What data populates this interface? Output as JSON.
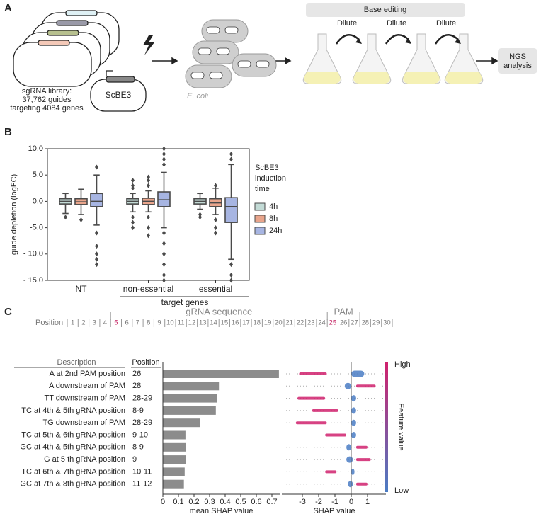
{
  "panel_a": {
    "label": "A",
    "library": [
      "sgRNA library:",
      "37,762 guides",
      "targeting 4084 genes"
    ],
    "plasmid": "ScBE3",
    "cells": "E. coli",
    "process": "Base editing",
    "steps": [
      "Dilute",
      "Dilute",
      "Dilute"
    ],
    "readout": [
      "NGS",
      "analysis"
    ]
  },
  "panel_b_label": "B",
  "panel_c_label": "C",
  "sequence": {
    "axis_label": "Position",
    "positions": [
      1,
      2,
      3,
      4,
      5,
      6,
      7,
      8,
      9,
      10,
      11,
      12,
      13,
      14,
      15,
      16,
      17,
      18,
      19,
      20,
      21,
      22,
      23,
      24,
      25,
      26,
      27,
      28,
      29,
      30
    ],
    "highlight": [
      5,
      25
    ],
    "highlight_color": "#c2185b",
    "regions": [
      "gRNA sequence",
      "PAM"
    ]
  },
  "chart_data": [
    {
      "type": "box",
      "ylabel": "guide depletion (logFC)",
      "categories": [
        "NT",
        "non-essential",
        "essential"
      ],
      "group_label": "target genes",
      "legend_title": "ScBE3 induction time",
      "ylim": [
        -15,
        10
      ],
      "yticks": [
        {
          "value": 10,
          "label": "10.0"
        },
        {
          "value": 5,
          "label": "5.0"
        },
        {
          "value": 0,
          "label": "0.0"
        },
        {
          "value": -5,
          "label": "-5.0"
        },
        {
          "value": -10,
          "label": "- 10.0"
        },
        {
          "value": -15,
          "label": "- 15.0"
        }
      ],
      "series": [
        {
          "name": "4h",
          "color": "#c3dbd6",
          "values": [
            {
              "min": -2.3,
              "q1": -0.5,
              "median": 0,
              "q3": 0.5,
              "max": 1.5,
              "outliers": [
                -3
              ]
            },
            {
              "min": -2,
              "q1": -0.5,
              "median": 0,
              "q3": 0.5,
              "max": 1.5,
              "outliers": [
                2.5,
                3,
                4,
                -3,
                -4,
                -5
              ]
            },
            {
              "min": -1.5,
              "q1": -0.5,
              "median": 0,
              "q3": 0.5,
              "max": 1.5,
              "outliers": [
                -2.5,
                -3
              ]
            }
          ]
        },
        {
          "name": "8h",
          "color": "#e9a58c",
          "values": [
            {
              "min": -2.5,
              "q1": -0.6,
              "median": -0.1,
              "q3": 0.5,
              "max": 2.3,
              "outliers": [
                -3.5
              ]
            },
            {
              "min": -2,
              "q1": -0.6,
              "median": 0,
              "q3": 0.6,
              "max": 2,
              "outliers": [
                3,
                4,
                4.6,
                -3,
                -5,
                -6.5
              ]
            },
            {
              "min": -2.5,
              "q1": -1,
              "median": -0.3,
              "q3": 0.5,
              "max": 2.5,
              "outliers": [
                3,
                -3.5,
                -5,
                -6
              ]
            }
          ]
        },
        {
          "name": "24h",
          "color": "#a7b5e2",
          "values": [
            {
              "min": -4.5,
              "q1": -1,
              "median": 0,
              "q3": 1.5,
              "max": 5,
              "outliers": [
                6.5,
                -6,
                -8.5,
                -10,
                -11,
                -12
              ]
            },
            {
              "min": -5,
              "q1": -1,
              "median": 0.3,
              "q3": 1.8,
              "max": 5.5,
              "outliers": [
                7,
                8,
                9,
                10,
                -6,
                -8,
                -10,
                -12,
                -14,
                -15
              ]
            },
            {
              "min": -11,
              "q1": -4,
              "median": -1,
              "q3": 0.7,
              "max": 7,
              "outliers": [
                8,
                9,
                -12,
                -14,
                -15
              ]
            }
          ]
        }
      ]
    },
    {
      "type": "bar",
      "orientation": "horizontal",
      "column_headers": [
        "Description",
        "Position"
      ],
      "categories": [
        "A at 2nd PAM position",
        "A downstream of PAM",
        "TT downstream of PAM",
        "TC at 4th & 5th gRNA position",
        "TG downstream of PAM",
        "TC at 5th & 6th gRNA position",
        "GC at 4th & 5th gRNA position",
        "G at 5 th gRNA position",
        "TC at 6th & 7th gRNA position",
        "GC at 7th & 8th gRNA position"
      ],
      "positions": [
        "26",
        "28",
        "28-29",
        "8-9",
        "28-29",
        "9-10",
        "8-9",
        "9",
        "10-11",
        "11-12"
      ],
      "values": [
        0.745,
        0.36,
        0.35,
        0.34,
        0.24,
        0.145,
        0.15,
        0.15,
        0.14,
        0.135
      ],
      "color": "#8c8c8c",
      "xlabel": "mean SHAP value",
      "xlim": [
        0,
        0.75
      ],
      "xticks": [
        0,
        0.1,
        0.2,
        0.3,
        0.4,
        0.5,
        0.6,
        0.7
      ]
    },
    {
      "type": "shap",
      "xlabel": "SHAP value",
      "xlim": [
        -4,
        2
      ],
      "xticks": [
        -3,
        -2,
        -1,
        0,
        1
      ],
      "colorbar_title": "Feature value",
      "series": [
        {
          "name": "High",
          "color": "#d0216d",
          "values": [
            [
              -3.2,
              -1.5
            ],
            [
              0.3,
              1.5
            ],
            [
              -3.3,
              -1.6
            ],
            [
              -2.4,
              -0.8
            ],
            [
              -3.4,
              -1.5
            ],
            [
              -1.6,
              -0.3
            ],
            [
              0.3,
              1.0
            ],
            [
              0.3,
              1.2
            ],
            [
              -1.6,
              -0.9
            ],
            [
              0.3,
              1.0
            ]
          ]
        },
        {
          "name": "Low",
          "color": "#4a7cc4",
          "values": [
            [
              0,
              0.8
            ],
            [
              -0.4,
              0
            ],
            [
              0,
              0.3
            ],
            [
              0,
              0.3
            ],
            [
              0,
              0.3
            ],
            [
              0,
              0.3
            ],
            [
              -0.3,
              0
            ],
            [
              -0.3,
              0.1
            ],
            [
              0,
              0.2
            ],
            [
              -0.2,
              0.1
            ]
          ]
        }
      ]
    }
  ]
}
